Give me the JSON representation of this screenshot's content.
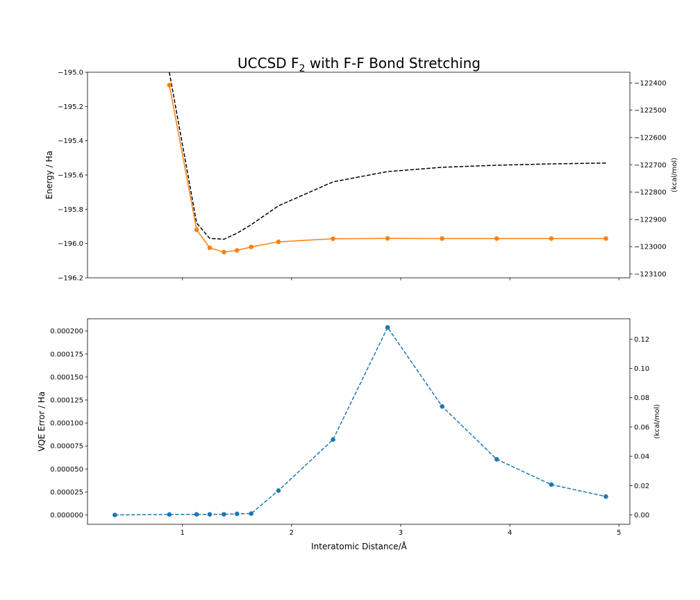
{
  "chart_data": [
    {
      "type": "line",
      "title": "UCCSD F₂ with F-F Bond Stretching",
      "title_parts": {
        "prefix": "UCCSD F",
        "subscript": "2",
        "suffix": " with F-F Bond Stretching"
      },
      "xlabel": "",
      "ylabel": "Energy / Ha",
      "y2label": "(kcal/mol)",
      "xlim": [
        0.13,
        5.1
      ],
      "ylim": [
        -196.2,
        -195.0
      ],
      "y2lim": [
        -123114,
        -122361
      ],
      "xticks": [
        1,
        2,
        3,
        4,
        5
      ],
      "show_xtick_labels": false,
      "yticks": [
        -195.0,
        -195.2,
        -195.4,
        -195.6,
        -195.8,
        -196.0,
        -196.2
      ],
      "ytick_labels": [
        "−195.0",
        "−195.2",
        "−195.4",
        "−195.6",
        "−195.8",
        "−196.0",
        "−196.2"
      ],
      "y2ticks": [
        -122400,
        -122500,
        -122600,
        -122700,
        -122800,
        -122900,
        -123000,
        -123100
      ],
      "y2tick_labels": [
        "−122400",
        "−122500",
        "−122600",
        "−122700",
        "−122800",
        "−122900",
        "−123000",
        "−123100"
      ],
      "grid": false,
      "series": [
        {
          "style": "dashed",
          "color": "#000000",
          "markers": false,
          "x": [
            0.88,
            1.13,
            1.25,
            1.38,
            1.5,
            1.63,
            1.88,
            2.38,
            2.88,
            3.38,
            3.88,
            4.38,
            4.88
          ],
          "y": [
            -195.0,
            -195.88,
            -195.97,
            -195.975,
            -195.94,
            -195.89,
            -195.78,
            -195.64,
            -195.58,
            -195.555,
            -195.543,
            -195.535,
            -195.53
          ]
        },
        {
          "style": "solid",
          "color": "#ff7f0e",
          "markers": true,
          "x": [
            0.88,
            1.13,
            1.25,
            1.38,
            1.5,
            1.63,
            1.88,
            2.38,
            2.88,
            3.38,
            3.88,
            4.38,
            4.88
          ],
          "y": [
            -195.075,
            -195.92,
            -196.025,
            -196.05,
            -196.04,
            -196.02,
            -195.99,
            -195.972,
            -195.97,
            -195.971,
            -195.971,
            -195.971,
            -195.971
          ]
        }
      ]
    },
    {
      "type": "line",
      "title": "",
      "xlabel": "Interatomic Distance/Å",
      "ylabel": "VQE Error / Ha",
      "y2label": "(kcal/mol)",
      "xlim": [
        0.13,
        5.1
      ],
      "ylim": [
        -1.02e-05,
        0.0002134
      ],
      "y2lim": [
        -0.0064,
        0.1339
      ],
      "xticks": [
        1,
        2,
        3,
        4,
        5
      ],
      "xtick_labels": [
        "1",
        "2",
        "3",
        "4",
        "5"
      ],
      "yticks": [
        0.0,
        2.5e-05,
        5e-05,
        7.5e-05,
        0.0001,
        0.000125,
        0.00015,
        0.000175,
        0.0002
      ],
      "ytick_labels": [
        "0.000000",
        "0.000025",
        "0.000050",
        "0.000075",
        "0.000100",
        "0.000125",
        "0.000150",
        "0.000175",
        "0.000200"
      ],
      "y2ticks": [
        0.0,
        0.02,
        0.04,
        0.06,
        0.08,
        0.1,
        0.12
      ],
      "y2tick_labels": [
        "0.00",
        "0.02",
        "0.04",
        "0.06",
        "0.08",
        "0.10",
        "0.12"
      ],
      "grid": false,
      "series": [
        {
          "style": "dashed",
          "color": "#1f77b4",
          "markers": true,
          "x": [
            0.38,
            0.88,
            1.13,
            1.25,
            1.38,
            1.5,
            1.63,
            1.88,
            2.38,
            2.88,
            3.38,
            3.88,
            4.38,
            4.88
          ],
          "y": [
            0.0,
            5e-07,
            6e-07,
            6e-07,
            7e-07,
            1.2e-06,
            1.5e-06,
            2.65e-05,
            8.2e-05,
            0.000204,
            0.000118,
            6.05e-05,
            3.3e-05,
            2e-05
          ]
        }
      ]
    }
  ]
}
